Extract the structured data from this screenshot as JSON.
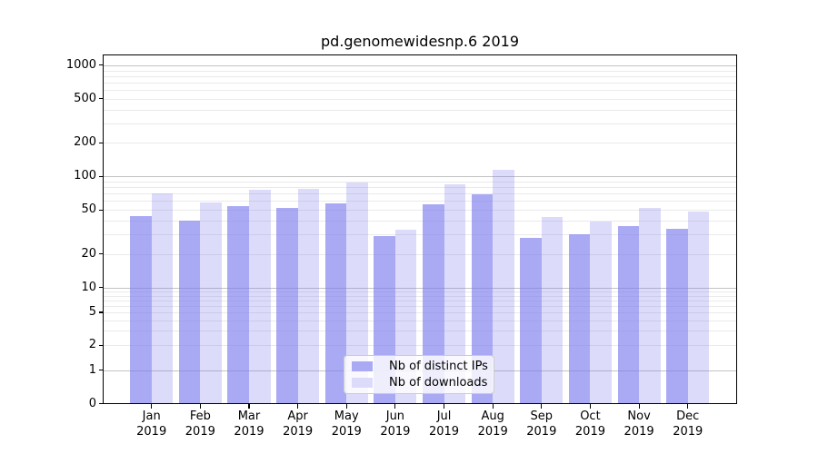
{
  "chart_data": {
    "type": "bar",
    "title": "pd.genomewidesnp.6 2019",
    "categories": [
      "Jan",
      "Feb",
      "Mar",
      "Apr",
      "May",
      "Jun",
      "Jul",
      "Aug",
      "Sep",
      "Oct",
      "Nov",
      "Dec"
    ],
    "year": "2019",
    "series": [
      {
        "name": "Nb of distinct IPs",
        "color": "rgba(124,124,238,0.65)",
        "legend_color": "#a9a9f4",
        "values": [
          44,
          40,
          54,
          52,
          57,
          29,
          56,
          69,
          28,
          30,
          36,
          34
        ]
      },
      {
        "name": "Nb of downloads",
        "color": "rgba(124,124,238,0.27)",
        "legend_color": "#dcdcfa",
        "values": [
          70,
          58,
          76,
          78,
          88,
          33,
          85,
          115,
          43,
          39,
          52,
          48
        ]
      }
    ],
    "xlabel": "",
    "ylabel": "",
    "yscale": "symlog",
    "yticks": [
      0,
      1,
      2,
      5,
      10,
      20,
      50,
      100,
      200,
      500,
      1000
    ],
    "ylim": [
      0,
      1250
    ],
    "grid": true,
    "legend_position": "lower center"
  },
  "palette": {
    "background": "#ffffff",
    "spine": "#000000",
    "grid_major": "#c3c3c3",
    "grid_minor": "#eaeaea",
    "text": "#000000"
  }
}
